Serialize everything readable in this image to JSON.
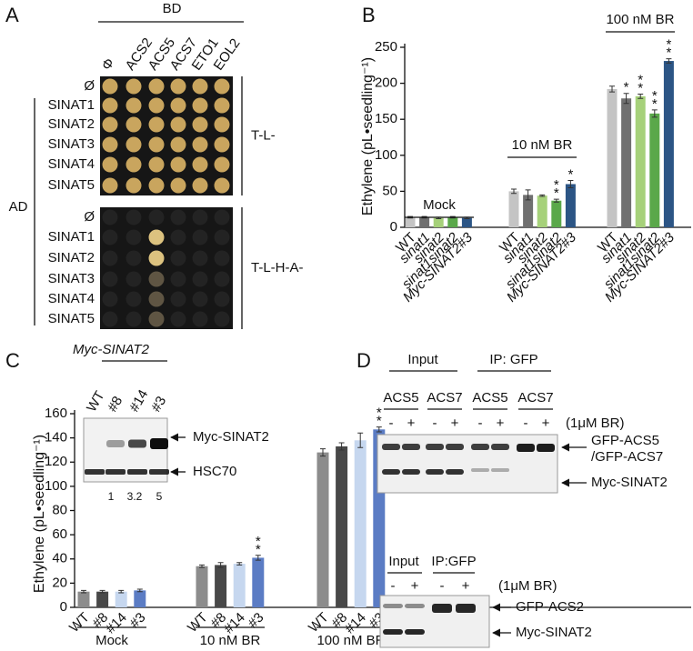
{
  "panel_labels": [
    "A",
    "B",
    "C",
    "D"
  ],
  "panel_a": {
    "bd_label": "BD",
    "columns": [
      "Φ",
      "ACS2",
      "ACS5",
      "ACS7",
      "ETO1",
      "EOL2"
    ],
    "ad_label": "AD",
    "plates": [
      {
        "medium": "T-L-",
        "rows": [
          "Ø",
          "SINAT1",
          "SINAT2",
          "SINAT3",
          "SINAT4",
          "SINAT5"
        ]
      },
      {
        "medium": "T-L-H-A-",
        "rows": [
          "Ø",
          "SINAT1",
          "SINAT2",
          "SINAT3",
          "SINAT4",
          "SINAT5"
        ]
      }
    ]
  },
  "chart_data": [
    {
      "type": "bar",
      "y_label": "Ethylene (pL•seedling⁻¹)",
      "categories": [
        "Mock",
        "10 nM BR",
        "100 nM BR"
      ],
      "series": [
        {
          "name": "WT",
          "italic": false,
          "color": "#c4c4c4",
          "values": [
            14,
            50,
            192
          ],
          "errors": [
            1,
            3,
            4
          ],
          "significance": [
            null,
            null,
            null
          ]
        },
        {
          "name": "sinat1",
          "italic": true,
          "color": "#707070",
          "values": [
            14,
            45,
            179
          ],
          "errors": [
            1,
            7,
            7
          ],
          "significance": [
            null,
            null,
            "*"
          ]
        },
        {
          "name": "sinat2",
          "italic": true,
          "color": "#a6d17a",
          "values": [
            13,
            44,
            182
          ],
          "errors": [
            1,
            1,
            3
          ],
          "significance": [
            null,
            null,
            "**"
          ]
        },
        {
          "name": "sinat1sinat2",
          "italic": true,
          "color": "#5aa84a",
          "values": [
            14,
            37,
            158
          ],
          "errors": [
            1,
            2,
            5
          ],
          "significance": [
            null,
            "**",
            "**"
          ]
        },
        {
          "name": "Myc-SINAT2#3",
          "italic": true,
          "color": "#2c5585",
          "values": [
            13,
            60,
            231
          ],
          "errors": [
            1,
            5,
            3
          ],
          "significance": [
            null,
            "*",
            "**"
          ]
        }
      ],
      "ylim": [
        0,
        250
      ],
      "yticks": [
        0,
        50,
        100,
        150,
        200,
        250
      ]
    },
    {
      "type": "bar",
      "y_label": "Ethylene (pL•seedling⁻¹)",
      "categories": [
        "Mock",
        "10 nM BR",
        "100 nM BR"
      ],
      "series": [
        {
          "name": "WT",
          "italic": false,
          "color": "#8c8c8c",
          "values": [
            13,
            34,
            128
          ],
          "errors": [
            1,
            1,
            3
          ],
          "significance": [
            null,
            null,
            null
          ]
        },
        {
          "name": "#8",
          "italic": false,
          "color": "#484848",
          "values": [
            13,
            35,
            133
          ],
          "errors": [
            1,
            2,
            3
          ],
          "significance": [
            null,
            null,
            null
          ]
        },
        {
          "name": "#14",
          "italic": false,
          "color": "#c6d7ef",
          "values": [
            13,
            36,
            138
          ],
          "errors": [
            1,
            1,
            6
          ],
          "significance": [
            null,
            null,
            null
          ]
        },
        {
          "name": "#3",
          "italic": false,
          "color": "#5b7cc4",
          "values": [
            14,
            41,
            147
          ],
          "errors": [
            1,
            2,
            2
          ],
          "significance": [
            null,
            "**",
            "**"
          ]
        }
      ],
      "ylim": [
        0,
        160
      ],
      "yticks": [
        0,
        20,
        40,
        60,
        80,
        100,
        120,
        140,
        160
      ]
    }
  ],
  "panel_c_inset": {
    "title": "Myc-SINAT2",
    "lanes": [
      "WT",
      "#8",
      "#14",
      "#3"
    ],
    "bands": [
      "Myc-SINAT2",
      "HSC70"
    ],
    "quantification": [
      1,
      3.2,
      5
    ]
  },
  "panel_d": {
    "top": {
      "groups": [
        "Input",
        "IP: GFP"
      ],
      "lanes": [
        "ACS5",
        "ACS7",
        "ACS5",
        "ACS7"
      ],
      "treatment": [
        "-",
        "+"
      ],
      "treatment_label": "(1μM BR)",
      "bands": [
        "GFP-ACS5",
        "/GFP-ACS7",
        "Myc-SINAT2"
      ]
    },
    "bottom": {
      "groups": [
        "Input",
        "IP:GFP"
      ],
      "treatment": [
        "-",
        "+"
      ],
      "treatment_label": "(1μM BR)",
      "bands": [
        "GFP-ACS2",
        "Myc-SINAT2"
      ]
    }
  }
}
